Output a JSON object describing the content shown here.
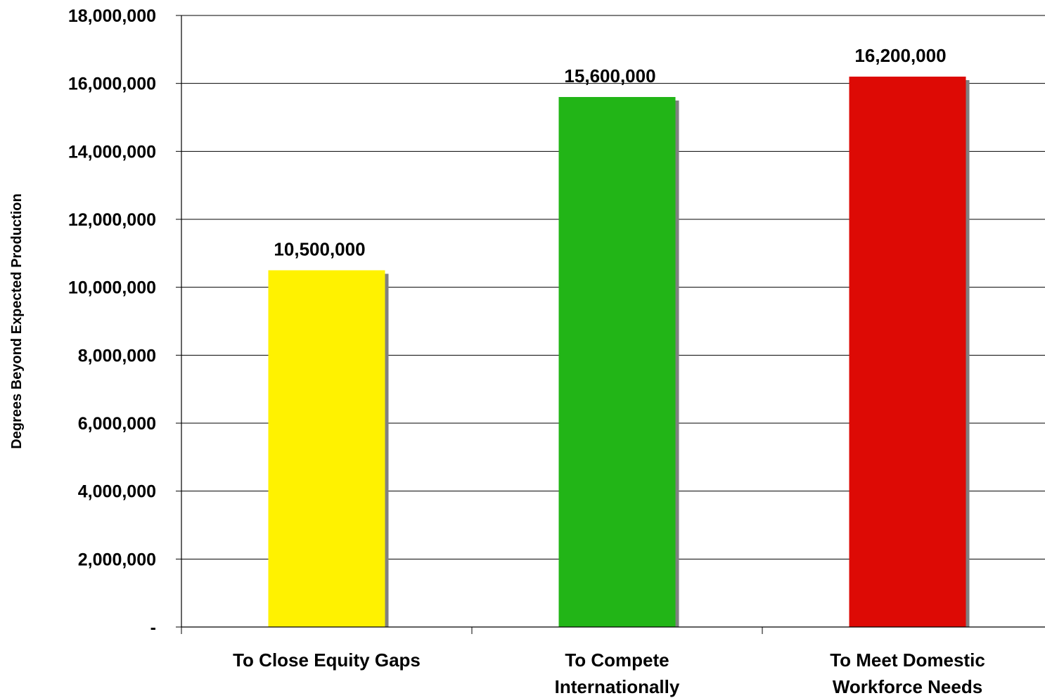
{
  "chart_data": {
    "type": "bar",
    "title": "",
    "xlabel": "",
    "ylabel": "Degrees Beyond Expected Production",
    "categories": [
      [
        "To Close Equity Gaps"
      ],
      [
        "To Compete",
        "Internationally"
      ],
      [
        "To Meet Domestic",
        "Workforce Needs"
      ]
    ],
    "values": [
      10500000,
      15600000,
      16200000
    ],
    "value_labels": [
      "10,500,000",
      "15,600,000",
      "16,200,000"
    ],
    "colors": [
      "#FFF200",
      "#22B517",
      "#DD0A05"
    ],
    "shadow_color": "#808080",
    "ylim": [
      0,
      18000000
    ],
    "yticks": [
      0,
      2000000,
      4000000,
      6000000,
      8000000,
      10000000,
      12000000,
      14000000,
      16000000,
      18000000
    ],
    "ytick_labels": [
      "-",
      "2,000,000",
      "4,000,000",
      "6,000,000",
      "8,000,000",
      "10,000,000",
      "12,000,000",
      "14,000,000",
      "16,000,000",
      "18,000,000"
    ],
    "grid": true,
    "legend": "none"
  }
}
